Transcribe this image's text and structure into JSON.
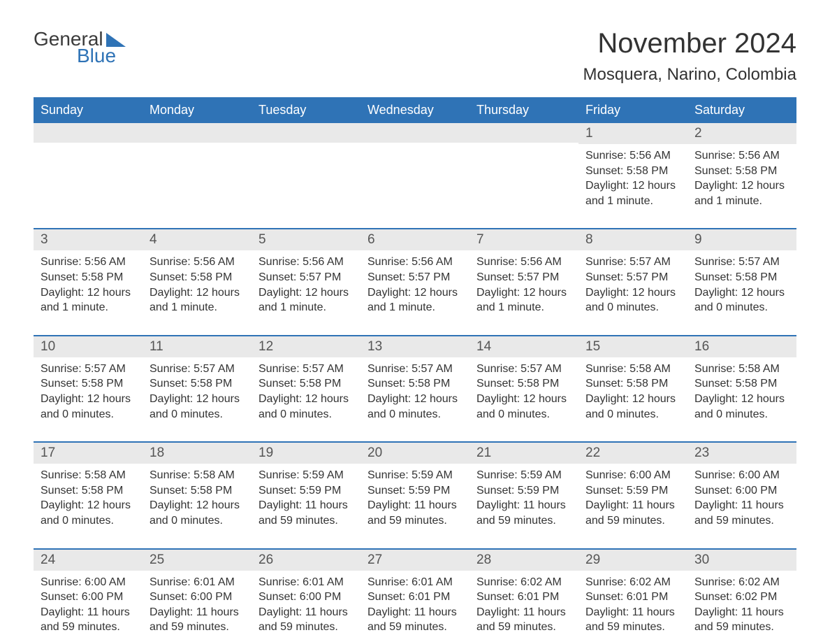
{
  "brand": {
    "word1": "General",
    "word2": "Blue",
    "text_color": "#3b3b3b",
    "accent_color": "#2f73b6"
  },
  "title": "November 2024",
  "location": "Mosquera, Narino, Colombia",
  "colors": {
    "header_bg": "#2f73b6",
    "header_text": "#ffffff",
    "daynum_bg": "#e9e9e9",
    "body_text": "#333333",
    "page_bg": "#ffffff"
  },
  "day_headers": [
    "Sunday",
    "Monday",
    "Tuesday",
    "Wednesday",
    "Thursday",
    "Friday",
    "Saturday"
  ],
  "weeks": [
    [
      null,
      null,
      null,
      null,
      null,
      {
        "day": "1",
        "sunrise": "5:56 AM",
        "sunset": "5:58 PM",
        "daylight": "12 hours and 1 minute."
      },
      {
        "day": "2",
        "sunrise": "5:56 AM",
        "sunset": "5:58 PM",
        "daylight": "12 hours and 1 minute."
      }
    ],
    [
      {
        "day": "3",
        "sunrise": "5:56 AM",
        "sunset": "5:58 PM",
        "daylight": "12 hours and 1 minute."
      },
      {
        "day": "4",
        "sunrise": "5:56 AM",
        "sunset": "5:58 PM",
        "daylight": "12 hours and 1 minute."
      },
      {
        "day": "5",
        "sunrise": "5:56 AM",
        "sunset": "5:57 PM",
        "daylight": "12 hours and 1 minute."
      },
      {
        "day": "6",
        "sunrise": "5:56 AM",
        "sunset": "5:57 PM",
        "daylight": "12 hours and 1 minute."
      },
      {
        "day": "7",
        "sunrise": "5:56 AM",
        "sunset": "5:57 PM",
        "daylight": "12 hours and 1 minute."
      },
      {
        "day": "8",
        "sunrise": "5:57 AM",
        "sunset": "5:57 PM",
        "daylight": "12 hours and 0 minutes."
      },
      {
        "day": "9",
        "sunrise": "5:57 AM",
        "sunset": "5:58 PM",
        "daylight": "12 hours and 0 minutes."
      }
    ],
    [
      {
        "day": "10",
        "sunrise": "5:57 AM",
        "sunset": "5:58 PM",
        "daylight": "12 hours and 0 minutes."
      },
      {
        "day": "11",
        "sunrise": "5:57 AM",
        "sunset": "5:58 PM",
        "daylight": "12 hours and 0 minutes."
      },
      {
        "day": "12",
        "sunrise": "5:57 AM",
        "sunset": "5:58 PM",
        "daylight": "12 hours and 0 minutes."
      },
      {
        "day": "13",
        "sunrise": "5:57 AM",
        "sunset": "5:58 PM",
        "daylight": "12 hours and 0 minutes."
      },
      {
        "day": "14",
        "sunrise": "5:57 AM",
        "sunset": "5:58 PM",
        "daylight": "12 hours and 0 minutes."
      },
      {
        "day": "15",
        "sunrise": "5:58 AM",
        "sunset": "5:58 PM",
        "daylight": "12 hours and 0 minutes."
      },
      {
        "day": "16",
        "sunrise": "5:58 AM",
        "sunset": "5:58 PM",
        "daylight": "12 hours and 0 minutes."
      }
    ],
    [
      {
        "day": "17",
        "sunrise": "5:58 AM",
        "sunset": "5:58 PM",
        "daylight": "12 hours and 0 minutes."
      },
      {
        "day": "18",
        "sunrise": "5:58 AM",
        "sunset": "5:58 PM",
        "daylight": "12 hours and 0 minutes."
      },
      {
        "day": "19",
        "sunrise": "5:59 AM",
        "sunset": "5:59 PM",
        "daylight": "11 hours and 59 minutes."
      },
      {
        "day": "20",
        "sunrise": "5:59 AM",
        "sunset": "5:59 PM",
        "daylight": "11 hours and 59 minutes."
      },
      {
        "day": "21",
        "sunrise": "5:59 AM",
        "sunset": "5:59 PM",
        "daylight": "11 hours and 59 minutes."
      },
      {
        "day": "22",
        "sunrise": "6:00 AM",
        "sunset": "5:59 PM",
        "daylight": "11 hours and 59 minutes."
      },
      {
        "day": "23",
        "sunrise": "6:00 AM",
        "sunset": "6:00 PM",
        "daylight": "11 hours and 59 minutes."
      }
    ],
    [
      {
        "day": "24",
        "sunrise": "6:00 AM",
        "sunset": "6:00 PM",
        "daylight": "11 hours and 59 minutes."
      },
      {
        "day": "25",
        "sunrise": "6:01 AM",
        "sunset": "6:00 PM",
        "daylight": "11 hours and 59 minutes."
      },
      {
        "day": "26",
        "sunrise": "6:01 AM",
        "sunset": "6:00 PM",
        "daylight": "11 hours and 59 minutes."
      },
      {
        "day": "27",
        "sunrise": "6:01 AM",
        "sunset": "6:01 PM",
        "daylight": "11 hours and 59 minutes."
      },
      {
        "day": "28",
        "sunrise": "6:02 AM",
        "sunset": "6:01 PM",
        "daylight": "11 hours and 59 minutes."
      },
      {
        "day": "29",
        "sunrise": "6:02 AM",
        "sunset": "6:01 PM",
        "daylight": "11 hours and 59 minutes."
      },
      {
        "day": "30",
        "sunrise": "6:02 AM",
        "sunset": "6:02 PM",
        "daylight": "11 hours and 59 minutes."
      }
    ]
  ],
  "labels": {
    "sunrise": "Sunrise: ",
    "sunset": "Sunset: ",
    "daylight": "Daylight: "
  }
}
